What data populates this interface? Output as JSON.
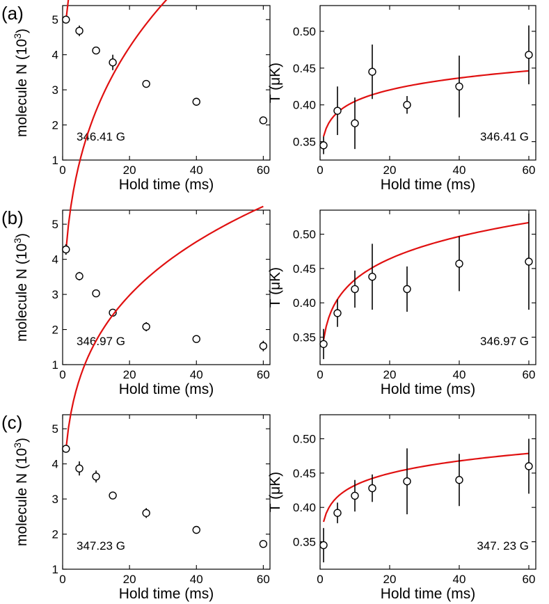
{
  "figure": {
    "panel_labels": [
      "(a)",
      "(b)",
      "(c)"
    ]
  },
  "colors": {
    "fit": "#e01010",
    "marker": "#000000"
  },
  "chart_data": [
    {
      "id": "a-left",
      "row": 0,
      "col": 0,
      "type": "scatter",
      "xlabel": "Hold time (ms)",
      "ylabel": "molecule N (10³)",
      "ylabel_main": "molecule N (10",
      "ylabel_sup": "3",
      "ylabel_end": ")",
      "xlim": [
        0,
        62
      ],
      "ylim": [
        1,
        5.4
      ],
      "xticks": [
        0,
        20,
        40,
        60
      ],
      "yticks": [
        1,
        2,
        3,
        4,
        5
      ],
      "ytick_decimals": 0,
      "annotation": "346.41 G",
      "annotation_pos": "bottom-left",
      "x": [
        1,
        5,
        10,
        15,
        25,
        40,
        60
      ],
      "y": [
        5.0,
        4.68,
        4.12,
        3.78,
        3.17,
        2.66,
        2.13
      ],
      "yerr": [
        0.06,
        0.15,
        0.1,
        0.22,
        0.08,
        0.06,
        0.07
      ],
      "fit": {
        "kind": "power",
        "x0": 1,
        "a": 4.98,
        "b": 0.207
      }
    },
    {
      "id": "a-right",
      "row": 0,
      "col": 1,
      "type": "scatter",
      "xlabel": "Hold time (ms)",
      "ylabel": "T (μK)",
      "xlim": [
        0,
        62
      ],
      "ylim": [
        0.325,
        0.535
      ],
      "xticks": [
        0,
        20,
        40,
        60
      ],
      "yticks": [
        0.35,
        0.4,
        0.45,
        0.5
      ],
      "ytick_decimals": 2,
      "annotation": "346.41 G",
      "annotation_pos": "bottom-right",
      "x": [
        1,
        5,
        10,
        15,
        25,
        40,
        60
      ],
      "y": [
        0.345,
        0.392,
        0.375,
        0.445,
        0.4,
        0.425,
        0.468
      ],
      "yerr": [
        0.012,
        0.033,
        0.035,
        0.037,
        0.012,
        0.042,
        0.04
      ],
      "fit": {
        "kind": "power",
        "x0": 1,
        "a": 0.357,
        "b": 0.0545
      }
    },
    {
      "id": "b-left",
      "row": 1,
      "col": 0,
      "type": "scatter",
      "xlabel": "Hold time (ms)",
      "ylabel": "molecule N (10³)",
      "ylabel_main": "molecule N (10",
      "ylabel_sup": "3",
      "ylabel_end": ")",
      "xlim": [
        0,
        62
      ],
      "ylim": [
        1,
        5.4
      ],
      "xticks": [
        0,
        20,
        40,
        60
      ],
      "yticks": [
        1,
        2,
        3,
        4,
        5
      ],
      "ytick_decimals": 0,
      "annotation": "346.97 G",
      "annotation_pos": "bottom-left",
      "x": [
        1,
        5,
        10,
        15,
        25,
        40,
        60
      ],
      "y": [
        4.28,
        3.52,
        3.03,
        2.48,
        2.08,
        1.73,
        1.53
      ],
      "yerr": [
        0.15,
        0.12,
        0.1,
        0.07,
        0.13,
        0.05,
        0.15
      ],
      "fit": {
        "kind": "power",
        "x0": 1,
        "a": 4.25,
        "b": 0.287
      }
    },
    {
      "id": "b-right",
      "row": 1,
      "col": 1,
      "type": "scatter",
      "xlabel": "Hold time (ms)",
      "ylabel": "T (μK)",
      "xlim": [
        0,
        62
      ],
      "ylim": [
        0.31,
        0.535
      ],
      "xticks": [
        0,
        20,
        40,
        60
      ],
      "yticks": [
        0.35,
        0.4,
        0.45,
        0.5
      ],
      "ytick_decimals": 2,
      "annotation": "346.97 G",
      "annotation_pos": "bottom-right",
      "x": [
        1,
        5,
        10,
        15,
        25,
        40,
        60
      ],
      "y": [
        0.34,
        0.385,
        0.42,
        0.438,
        0.42,
        0.457,
        0.46
      ],
      "yerr": [
        0.022,
        0.02,
        0.027,
        0.048,
        0.033,
        0.04,
        0.07
      ],
      "fit": {
        "kind": "power",
        "x0": 1,
        "a": 0.346,
        "b": 0.098
      }
    },
    {
      "id": "c-left",
      "row": 2,
      "col": 0,
      "type": "scatter",
      "xlabel": "Hold time (ms)",
      "ylabel": "molecule N (10³)",
      "ylabel_main": "molecule N (10",
      "ylabel_sup": "3",
      "ylabel_end": ")",
      "xlim": [
        0,
        62
      ],
      "ylim": [
        1,
        5.4
      ],
      "xticks": [
        0,
        20,
        40,
        60
      ],
      "yticks": [
        1,
        2,
        3,
        4,
        5
      ],
      "ytick_decimals": 0,
      "annotation": "347.23 G",
      "annotation_pos": "bottom-left",
      "x": [
        1,
        5,
        10,
        15,
        25,
        40,
        60
      ],
      "y": [
        4.43,
        3.87,
        3.64,
        3.1,
        2.6,
        2.12,
        1.72
      ],
      "yerr": [
        0.08,
        0.2,
        0.17,
        0.07,
        0.14,
        0.07,
        0.05
      ],
      "fit": {
        "kind": "power",
        "x0": 1,
        "a": 4.42,
        "b": 0.23
      }
    },
    {
      "id": "c-right",
      "row": 2,
      "col": 1,
      "type": "scatter",
      "xlabel": "Hold time (ms)",
      "ylabel": "T (μK)",
      "xlim": [
        0,
        62
      ],
      "ylim": [
        0.31,
        0.535
      ],
      "xticks": [
        0,
        20,
        40,
        60
      ],
      "yticks": [
        0.35,
        0.4,
        0.45,
        0.5
      ],
      "ytick_decimals": 2,
      "annotation": "347. 23 G",
      "annotation_pos": "bottom-right",
      "x": [
        1,
        5,
        10,
        15,
        25,
        40,
        60
      ],
      "y": [
        0.345,
        0.392,
        0.417,
        0.428,
        0.438,
        0.44,
        0.46
      ],
      "yerr": [
        0.025,
        0.015,
        0.023,
        0.02,
        0.048,
        0.038,
        0.04
      ],
      "fit": {
        "kind": "power",
        "x0": 1,
        "a": 0.379,
        "b": 0.057
      }
    }
  ]
}
